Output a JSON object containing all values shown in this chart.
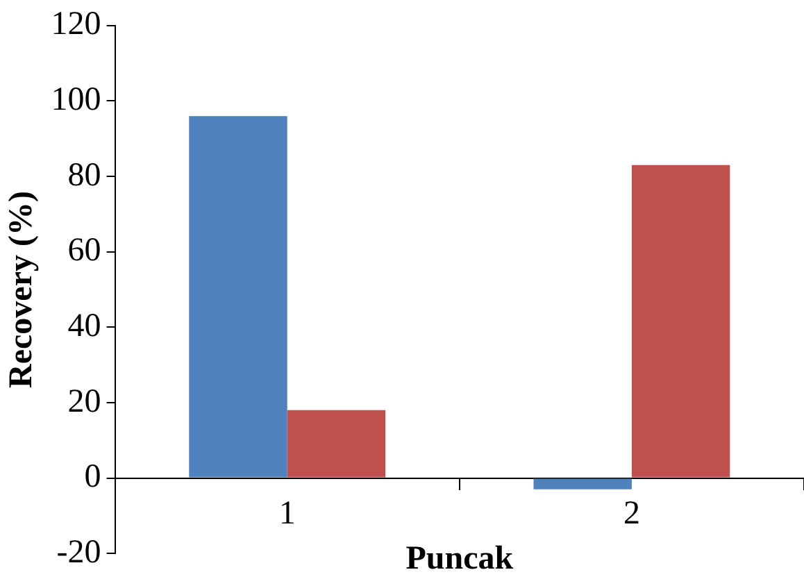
{
  "chart_data": {
    "type": "bar",
    "xlabel": "Puncak",
    "ylabel": "Recovery (%)",
    "categories": [
      "1",
      "2"
    ],
    "series": [
      {
        "color": "#4f81bd",
        "values": [
          96,
          -3
        ]
      },
      {
        "color": "#c0504d",
        "values": [
          18,
          83
        ]
      }
    ],
    "ylim": [
      -20,
      120
    ],
    "yticks": [
      -20,
      0,
      20,
      40,
      60,
      80,
      100,
      120
    ],
    "grid": false,
    "legend": false
  }
}
